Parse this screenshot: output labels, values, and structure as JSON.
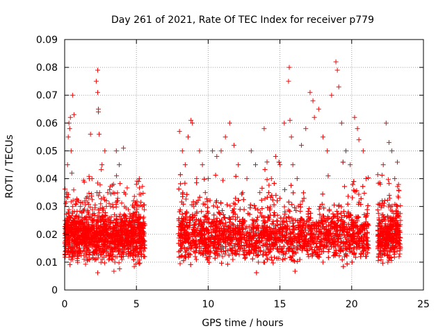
{
  "chart_data": {
    "type": "scatter",
    "title": "Day 261 of 2021, Rate Of TEC Index for receiver p779",
    "xlabel": "GPS time / hours",
    "ylabel": "ROTI / TECUs",
    "xlim": [
      0,
      25
    ],
    "ylim": [
      0,
      0.09
    ],
    "xticks": [
      0,
      5,
      10,
      15,
      20,
      25
    ],
    "xtick_labels": [
      "0",
      "5",
      "10",
      "15",
      "20",
      "25"
    ],
    "yticks": [
      0,
      0.01,
      0.02,
      0.03,
      0.04,
      0.05,
      0.06,
      0.07,
      0.08,
      0.09
    ],
    "ytick_labels": [
      "0",
      "0.01",
      "0.02",
      "0.03",
      "0.04",
      "0.05",
      "0.06",
      "0.07",
      "0.08",
      "0.09"
    ],
    "grid": true,
    "marker": "+",
    "color": "#ff0000",
    "data_gaps_hours": [
      [
        5.6,
        7.9
      ],
      [
        21.2,
        21.8
      ]
    ],
    "series": [
      {
        "name": "ROTI",
        "x": [
          0.1,
          0.2,
          0.25,
          0.3,
          0.35,
          0.4,
          0.45,
          0.5,
          0.55,
          0.6,
          0.7,
          0.65,
          0.15,
          0.5,
          0.55,
          1.2,
          1.5,
          1.8,
          1.9,
          2.0,
          2.2,
          2.3,
          2.35,
          2.4,
          2.6,
          2.8,
          3.0,
          3.2,
          3.4,
          3.6,
          3.8,
          4.0,
          4.2,
          4.4,
          4.6,
          4.8,
          5.0,
          5.2,
          5.4,
          2.25,
          2.3,
          2.35,
          4.1,
          0.8,
          1.0,
          0.9,
          1.1,
          1.3,
          1.6,
          3.1,
          3.5,
          8.0,
          8.2,
          8.4,
          8.6,
          8.8,
          8.9,
          9.0,
          9.2,
          9.4,
          9.6,
          9.8,
          10.0,
          10.3,
          10.6,
          10.9,
          11.2,
          11.5,
          11.8,
          12.1,
          12.4,
          12.7,
          13.0,
          13.3,
          13.6,
          13.9,
          14.1,
          14.4,
          14.7,
          15.0,
          15.3,
          15.6,
          15.65,
          15.7,
          15.9,
          16.2,
          16.5,
          16.8,
          17.1,
          17.4,
          17.7,
          18.0,
          18.3,
          18.6,
          18.9,
          19.0,
          19.1,
          19.3,
          19.6,
          19.9,
          20.2,
          20.4,
          20.5,
          20.8,
          21.0,
          10.5,
          11.0,
          12.0,
          13.5,
          14.0,
          16.0,
          17.0,
          18.0,
          18.5,
          19.5,
          20.0,
          8.5,
          9.5,
          15.4,
          16.9,
          17.3,
          15.8,
          9.1,
          12.3,
          14.2,
          22.0,
          22.2,
          22.4,
          22.6,
          22.8,
          23.0,
          23.2,
          23.4,
          22.7,
          22.9,
          23.3
        ],
        "y": [
          0.015,
          0.045,
          0.055,
          0.06,
          0.058,
          0.062,
          0.05,
          0.042,
          0.03,
          0.025,
          0.02,
          0.063,
          0.035,
          0.012,
          0.07,
          0.028,
          0.033,
          0.056,
          0.04,
          0.025,
          0.075,
          0.079,
          0.065,
          0.056,
          0.045,
          0.05,
          0.035,
          0.03,
          0.038,
          0.05,
          0.045,
          0.025,
          0.02,
          0.015,
          0.015,
          0.032,
          0.038,
          0.04,
          0.03,
          0.035,
          0.071,
          0.064,
          0.051,
          0.018,
          0.015,
          0.022,
          0.03,
          0.02,
          0.018,
          0.012,
          0.01,
          0.057,
          0.05,
          0.045,
          0.055,
          0.061,
          0.06,
          0.03,
          0.04,
          0.05,
          0.045,
          0.035,
          0.04,
          0.05,
          0.048,
          0.05,
          0.055,
          0.06,
          0.052,
          0.045,
          0.035,
          0.04,
          0.05,
          0.045,
          0.035,
          0.058,
          0.046,
          0.04,
          0.048,
          0.045,
          0.06,
          0.075,
          0.08,
          0.061,
          0.045,
          0.04,
          0.052,
          0.058,
          0.071,
          0.062,
          0.065,
          0.055,
          0.05,
          0.07,
          0.082,
          0.079,
          0.073,
          0.06,
          0.05,
          0.045,
          0.062,
          0.058,
          0.054,
          0.05,
          0.04,
          0.015,
          0.012,
          0.018,
          0.01,
          0.02,
          0.015,
          0.012,
          0.01,
          0.018,
          0.012,
          0.014,
          0.02,
          0.015,
          0.013,
          0.016,
          0.068,
          0.055,
          0.012,
          0.02,
          0.015,
          0.038,
          0.045,
          0.06,
          0.053,
          0.05,
          0.04,
          0.03,
          0.025,
          0.02,
          0.015,
          0.012
        ]
      }
    ],
    "dense_band": {
      "segments_hours": [
        [
          0.0,
          5.6
        ],
        [
          7.9,
          21.2
        ],
        [
          21.8,
          23.4
        ]
      ],
      "typical_min": 0.005,
      "typical_max": 0.03,
      "mode": 0.015
    }
  }
}
